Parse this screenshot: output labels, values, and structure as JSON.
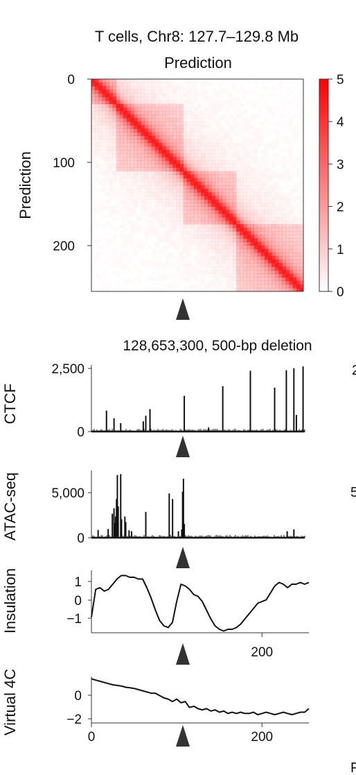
{
  "header": {
    "title": "T cells, Chr8: 127.7–129.8 Mb",
    "subtitle": "Prediction"
  },
  "heatmap": {
    "ylabel": "Prediction",
    "yticks": [
      0,
      100,
      200
    ],
    "range": [
      0,
      255
    ],
    "colorbar": {
      "ticks": [
        5,
        4,
        3,
        2,
        1,
        0
      ],
      "min": 0,
      "max": 5,
      "color_low": "#ffffff",
      "color_high": "#ff0000"
    },
    "marker_bin": 110
  },
  "deletion_label": "128,653,300, 500-bp deletion",
  "edge_fragments": {
    "right_top": "2",
    "right_mid": "5",
    "bottom_right": "F"
  },
  "colors": {
    "heat": "#ff1a1a",
    "trace": "#111111",
    "marker": "#333333"
  },
  "chart_data": [
    {
      "type": "heatmap",
      "title": "Prediction",
      "ylabel": "Prediction",
      "x_range": [
        0,
        255
      ],
      "y_range": [
        0,
        255
      ],
      "value_range": [
        0,
        5
      ],
      "diagonal_value": 5,
      "domains": [
        [
          0,
          30
        ],
        [
          30,
          110
        ],
        [
          110,
          175
        ],
        [
          175,
          255
        ]
      ]
    },
    {
      "type": "bar",
      "ylabel": "CTCF",
      "ylim": [
        0,
        2500
      ],
      "yticks": [
        "2,500",
        "0"
      ],
      "x_range": [
        0,
        255
      ],
      "peaks": [
        [
          18,
          820
        ],
        [
          27,
          520
        ],
        [
          35,
          330
        ],
        [
          62,
          400
        ],
        [
          65,
          620
        ],
        [
          70,
          880
        ],
        [
          111,
          1400
        ],
        [
          140,
          160
        ],
        [
          157,
          1780
        ],
        [
          190,
          2380
        ],
        [
          219,
          1720
        ],
        [
          233,
          2400
        ],
        [
          242,
          2480
        ],
        [
          245,
          650
        ],
        [
          253,
          2550
        ]
      ]
    },
    {
      "type": "bar",
      "ylabel": "ATAC-seq",
      "ylim": [
        0,
        7000
      ],
      "yticks": [
        "5,000",
        "0"
      ],
      "x_range": [
        0,
        255
      ],
      "peaks": [
        [
          8,
          850
        ],
        [
          20,
          950
        ],
        [
          25,
          2600
        ],
        [
          27,
          3200
        ],
        [
          28,
          1600
        ],
        [
          29,
          2300
        ],
        [
          30,
          4200
        ],
        [
          31,
          6800
        ],
        [
          32,
          3400
        ],
        [
          35,
          6900
        ],
        [
          36,
          2000
        ],
        [
          40,
          2300
        ],
        [
          41,
          1700
        ],
        [
          45,
          800
        ],
        [
          48,
          700
        ],
        [
          65,
          2800
        ],
        [
          93,
          4800
        ],
        [
          97,
          4200
        ],
        [
          104,
          700
        ],
        [
          108,
          900
        ],
        [
          109,
          5000
        ],
        [
          110,
          6400
        ],
        [
          111,
          1500
        ],
        [
          234,
          700
        ],
        [
          242,
          900
        ]
      ]
    },
    {
      "type": "line",
      "ylabel": "Insulation",
      "ylim": [
        -1.8,
        1.8
      ],
      "yticks": [
        "1",
        "0",
        "−1"
      ],
      "xlim": [
        0,
        255
      ],
      "xticks": [
        "200"
      ],
      "x": [
        0,
        5,
        10,
        15,
        20,
        25,
        30,
        35,
        40,
        45,
        50,
        55,
        60,
        65,
        70,
        75,
        80,
        85,
        90,
        95,
        100,
        105,
        110,
        115,
        120,
        125,
        130,
        135,
        140,
        145,
        150,
        155,
        160,
        165,
        170,
        175,
        180,
        185,
        190,
        195,
        200,
        205,
        210,
        215,
        220,
        225,
        230,
        235,
        240,
        245,
        250,
        255
      ],
      "y": [
        -0.9,
        0.7,
        0.8,
        0.6,
        0.7,
        1.0,
        1.3,
        1.5,
        1.5,
        1.4,
        1.4,
        1.3,
        1.3,
        0.8,
        0.2,
        -0.5,
        -1.1,
        -1.4,
        -1.5,
        -1.2,
        0.0,
        1.0,
        0.9,
        0.7,
        0.4,
        0.3,
        0.0,
        -0.5,
        -1.0,
        -1.4,
        -1.6,
        -1.7,
        -1.6,
        -1.6,
        -1.5,
        -1.3,
        -1.0,
        -0.7,
        -0.4,
        -0.1,
        0.0,
        0.1,
        0.5,
        0.9,
        1.1,
        1.0,
        0.8,
        1.0,
        1.0,
        1.1,
        1.0,
        1.1
      ]
    },
    {
      "type": "line",
      "ylabel": "Virtual 4C",
      "ylim": [
        -2.3,
        1.6
      ],
      "yticks": [
        "0",
        "−2"
      ],
      "xlim": [
        0,
        255
      ],
      "xticks": [
        "0",
        "200"
      ],
      "x": [
        0,
        5,
        10,
        15,
        20,
        25,
        30,
        35,
        40,
        45,
        50,
        55,
        60,
        65,
        70,
        75,
        80,
        85,
        90,
        95,
        100,
        105,
        110,
        115,
        120,
        125,
        130,
        135,
        140,
        145,
        150,
        155,
        160,
        165,
        170,
        175,
        180,
        185,
        190,
        195,
        200,
        205,
        210,
        215,
        220,
        225,
        230,
        235,
        240,
        245,
        250,
        255
      ],
      "y": [
        1.4,
        1.3,
        1.2,
        1.1,
        1.0,
        0.9,
        0.85,
        0.8,
        0.7,
        0.65,
        0.6,
        0.5,
        0.4,
        0.3,
        0.2,
        0.2,
        0.0,
        -0.2,
        -0.3,
        -0.5,
        -0.3,
        -0.6,
        -0.5,
        -1.0,
        -0.9,
        -1.1,
        -1.2,
        -1.1,
        -1.3,
        -1.2,
        -1.4,
        -1.3,
        -1.5,
        -1.4,
        -1.5,
        -1.4,
        -1.5,
        -1.5,
        -1.4,
        -1.6,
        -1.5,
        -1.4,
        -1.5,
        -1.6,
        -1.5,
        -1.4,
        -1.5,
        -1.6,
        -1.5,
        -1.4,
        -1.4,
        -1.1
      ]
    }
  ]
}
